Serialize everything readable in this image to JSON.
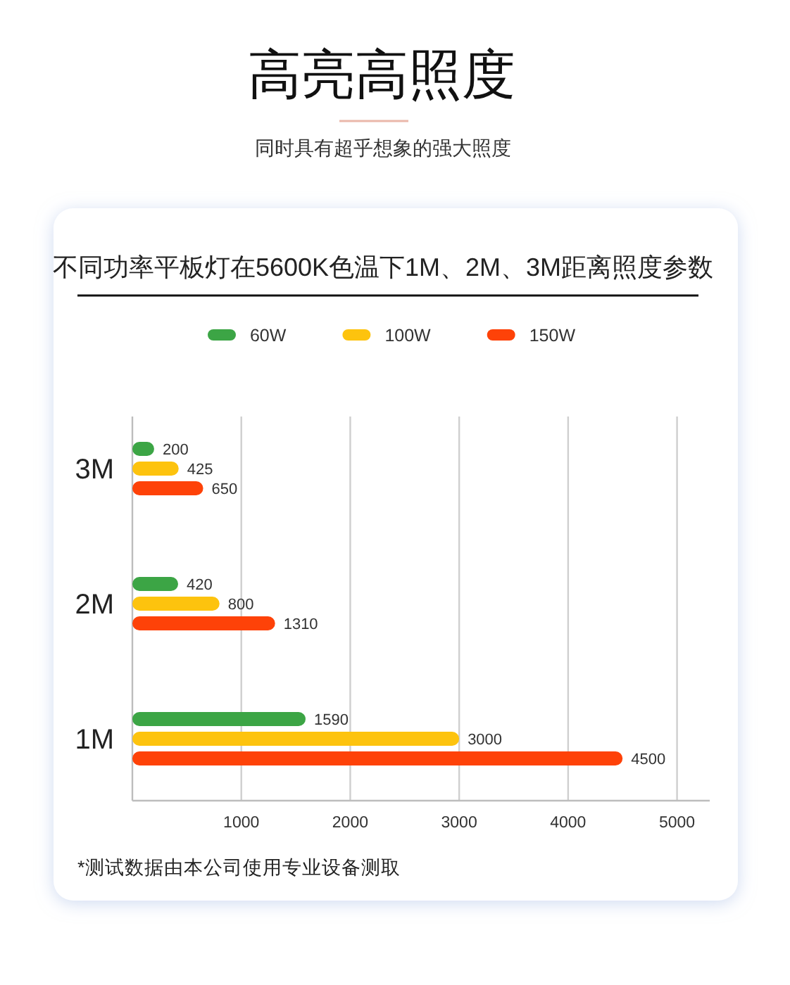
{
  "chart_data": {
    "type": "bar",
    "orientation": "horizontal",
    "title": "不同功率平板灯在5600K色温下1M、2M、3M距离照度参数",
    "annotations": [
      "高亮高照度",
      "同时具有超乎想象的强大照度",
      "*测试数据由本公司使用专业设备测取"
    ],
    "categories": [
      "3M",
      "2M",
      "1M"
    ],
    "series": [
      {
        "name": "60W",
        "color": "#3ca545",
        "values": [
          200,
          420,
          1590
        ]
      },
      {
        "name": "100W",
        "color": "#fdc30e",
        "values": [
          425,
          800,
          3000
        ]
      },
      {
        "name": "150W",
        "color": "#fe4208",
        "values": [
          650,
          1310,
          4500
        ]
      }
    ],
    "xlim": [
      0,
      5300
    ],
    "xticks": [
      1000,
      2000,
      3000,
      4000,
      5000
    ],
    "grid": "x",
    "legend": "top",
    "data_labels": true
  }
}
